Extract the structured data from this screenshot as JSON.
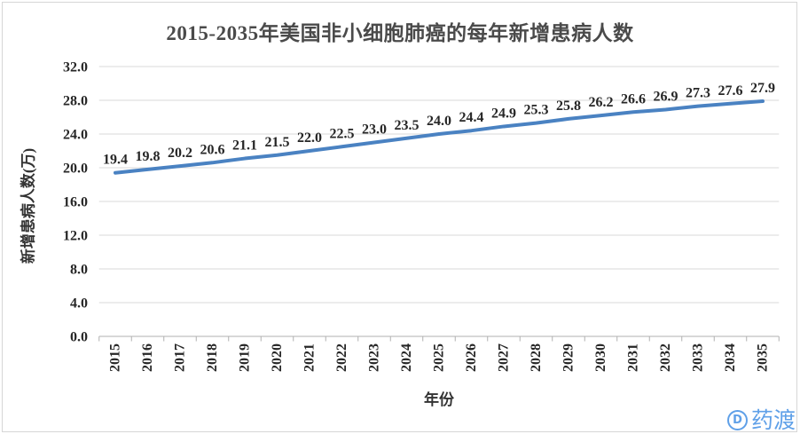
{
  "chart_data": {
    "type": "line",
    "title": "2015-2035年美国非小细胞肺癌的每年新增患病人数",
    "xlabel": "年份",
    "ylabel": "新增患病人数(万)",
    "categories": [
      "2015",
      "2016",
      "2017",
      "2018",
      "2019",
      "2020",
      "2021",
      "2022",
      "2023",
      "2024",
      "2025",
      "2026",
      "2027",
      "2028",
      "2029",
      "2030",
      "2031",
      "2032",
      "2033",
      "2034",
      "2035"
    ],
    "values": [
      19.4,
      19.8,
      20.2,
      20.6,
      21.1,
      21.5,
      22.0,
      22.5,
      23.0,
      23.5,
      24.0,
      24.4,
      24.9,
      25.3,
      25.8,
      26.2,
      26.6,
      26.9,
      27.3,
      27.6,
      27.9
    ],
    "ylim": [
      0,
      32
    ],
    "ytick_step": 4,
    "yticks": [
      "0.0",
      "4.0",
      "8.0",
      "12.0",
      "16.0",
      "20.0",
      "24.0",
      "28.0",
      "32.0"
    ],
    "grid": true,
    "legend": "none",
    "data_labels": true,
    "x_labels_rotated_degrees": -90,
    "colors": {
      "line": "#4a82c2",
      "grid": "#dadada",
      "axis": "#b0b0b0",
      "tick_text": "#262626",
      "data_label_text": "#262626",
      "title_text": "#4a4a4a",
      "axis_title_text": "#333333"
    }
  },
  "watermark": {
    "icon": "pharmacodia-logo-icon",
    "icon_letter": "D",
    "text": "药渡",
    "color": "#5fa0e8"
  }
}
